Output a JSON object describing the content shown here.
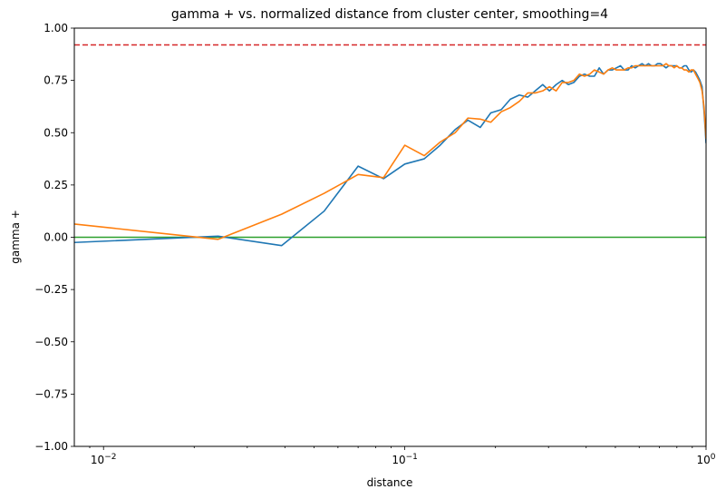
{
  "chart_data": {
    "type": "line",
    "title": "gamma + vs. normalized distance from cluster center, smoothing=4",
    "xlabel": "distance",
    "ylabel": "gamma +",
    "xscale": "log",
    "xlim": [
      0.008,
      1.0
    ],
    "ylim": [
      -1.0,
      1.0
    ],
    "grid": false,
    "legend": "none",
    "x_ticks": [
      {
        "value": 0.01,
        "base": "10",
        "exp": "−2"
      },
      {
        "value": 0.1,
        "base": "10",
        "exp": "−1"
      },
      {
        "value": 1.0,
        "base": "10",
        "exp": "0"
      }
    ],
    "y_ticks": [
      {
        "value": 1.0,
        "label": "1.00"
      },
      {
        "value": 0.75,
        "label": "0.75"
      },
      {
        "value": 0.5,
        "label": "0.50"
      },
      {
        "value": 0.25,
        "label": "0.25"
      },
      {
        "value": 0.0,
        "label": "0.00"
      },
      {
        "value": -0.25,
        "label": "−0.25"
      },
      {
        "value": -0.5,
        "label": "−0.50"
      },
      {
        "value": -0.75,
        "label": "−0.75"
      },
      {
        "value": -1.0,
        "label": "−1.00"
      }
    ],
    "series": [
      {
        "color": "#1f77b4",
        "x": [
          0.008,
          0.024,
          0.039,
          0.054,
          0.07,
          0.085,
          0.1,
          0.116,
          0.131,
          0.147,
          0.162,
          0.178,
          0.193,
          0.209,
          0.224,
          0.24,
          0.256,
          0.271,
          0.287,
          0.302,
          0.318,
          0.333,
          0.349,
          0.364,
          0.38,
          0.395,
          0.411,
          0.426,
          0.442,
          0.457,
          0.473,
          0.488,
          0.504,
          0.52,
          0.535,
          0.551,
          0.566,
          0.582,
          0.597,
          0.613,
          0.628,
          0.644,
          0.659,
          0.675,
          0.69,
          0.706,
          0.721,
          0.737,
          0.752,
          0.768,
          0.784,
          0.799,
          0.815,
          0.83,
          0.846,
          0.861,
          0.877,
          0.892,
          0.908,
          0.923,
          0.939,
          0.954,
          0.97,
          0.985,
          1.0
        ],
        "y": [
          -0.025,
          0.005,
          -0.04,
          0.125,
          0.34,
          0.28,
          0.35,
          0.375,
          0.44,
          0.515,
          0.56,
          0.525,
          0.595,
          0.61,
          0.66,
          0.68,
          0.67,
          0.7,
          0.73,
          0.7,
          0.73,
          0.75,
          0.73,
          0.74,
          0.77,
          0.78,
          0.77,
          0.77,
          0.81,
          0.78,
          0.8,
          0.8,
          0.81,
          0.82,
          0.8,
          0.8,
          0.82,
          0.81,
          0.82,
          0.83,
          0.82,
          0.83,
          0.82,
          0.82,
          0.83,
          0.83,
          0.82,
          0.81,
          0.82,
          0.82,
          0.82,
          0.82,
          0.81,
          0.81,
          0.82,
          0.82,
          0.8,
          0.79,
          0.8,
          0.79,
          0.77,
          0.75,
          0.72,
          0.6,
          0.45
        ]
      },
      {
        "color": "#ff7f0e",
        "x": [
          0.008,
          0.024,
          0.039,
          0.054,
          0.07,
          0.085,
          0.1,
          0.116,
          0.131,
          0.147,
          0.162,
          0.178,
          0.193,
          0.209,
          0.224,
          0.24,
          0.256,
          0.271,
          0.287,
          0.302,
          0.318,
          0.333,
          0.349,
          0.364,
          0.38,
          0.395,
          0.411,
          0.426,
          0.442,
          0.457,
          0.473,
          0.488,
          0.504,
          0.52,
          0.535,
          0.551,
          0.566,
          0.582,
          0.597,
          0.613,
          0.628,
          0.644,
          0.659,
          0.675,
          0.69,
          0.706,
          0.721,
          0.737,
          0.752,
          0.768,
          0.784,
          0.799,
          0.815,
          0.83,
          0.846,
          0.861,
          0.877,
          0.892,
          0.908,
          0.923,
          0.939,
          0.954,
          0.97,
          0.985,
          1.0
        ],
        "y": [
          0.063,
          -0.01,
          0.11,
          0.21,
          0.3,
          0.285,
          0.44,
          0.39,
          0.455,
          0.5,
          0.57,
          0.565,
          0.55,
          0.6,
          0.62,
          0.65,
          0.69,
          0.69,
          0.7,
          0.72,
          0.7,
          0.74,
          0.74,
          0.75,
          0.78,
          0.77,
          0.78,
          0.8,
          0.79,
          0.78,
          0.8,
          0.81,
          0.8,
          0.8,
          0.8,
          0.81,
          0.81,
          0.82,
          0.82,
          0.82,
          0.82,
          0.82,
          0.82,
          0.82,
          0.82,
          0.82,
          0.82,
          0.83,
          0.82,
          0.82,
          0.81,
          0.82,
          0.81,
          0.81,
          0.8,
          0.8,
          0.79,
          0.8,
          0.8,
          0.78,
          0.76,
          0.74,
          0.7,
          0.62,
          0.47
        ]
      }
    ],
    "reference_lines": [
      {
        "orientation": "horizontal",
        "y": 0.0,
        "color": "#2ca02c",
        "style": "solid"
      },
      {
        "orientation": "horizontal",
        "y": 0.92,
        "color": "#d62728",
        "style": "dashed"
      }
    ]
  }
}
